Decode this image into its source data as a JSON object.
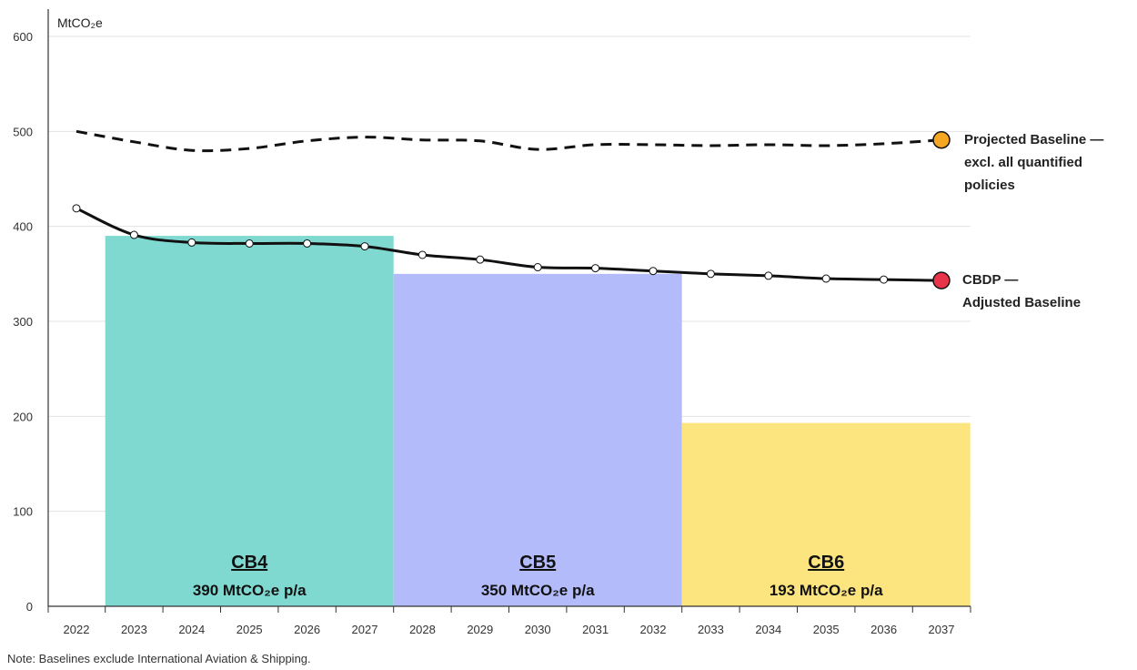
{
  "chart_data": {
    "type": "bar",
    "ylabel": "MtCO₂e",
    "ylim": [
      0,
      600
    ],
    "yticks": [
      0,
      100,
      200,
      300,
      400,
      500,
      600
    ],
    "x": [
      "2022",
      "2023",
      "2024",
      "2025",
      "2026",
      "2027",
      "2028",
      "2029",
      "2030",
      "2031",
      "2032",
      "2033",
      "2034",
      "2035",
      "2036",
      "2037"
    ],
    "grid": true,
    "budgets": [
      {
        "name": "CB4",
        "label": "390 MtCO₂e p/a",
        "value": 390,
        "start": "2023",
        "end": "2027",
        "color": "#80d9d1"
      },
      {
        "name": "CB5",
        "label": "350 MtCO₂e p/a",
        "value": 350,
        "start": "2028",
        "end": "2032",
        "color": "#b3bbfa"
      },
      {
        "name": "CB6",
        "label": "193 MtCO₂e p/a",
        "value": 193,
        "start": "2033",
        "end": "2037",
        "color": "#fce47e"
      }
    ],
    "series": [
      {
        "name": "Projected Baseline — excl. all quantified policies",
        "label_lines": [
          "Projected Baseline —",
          "excl. all quantified",
          "policies"
        ],
        "style": "dashed",
        "marker_color": "#f5a623",
        "values": [
          500,
          489,
          480,
          482,
          490,
          494,
          491,
          490,
          481,
          486,
          486,
          485,
          486,
          485,
          487,
          491
        ]
      },
      {
        "name": "CBDP — Adjusted Baseline",
        "label_lines": [
          "CBDP —",
          "Adjusted Baseline"
        ],
        "style": "solid",
        "marker_color": "#e8334a",
        "values": [
          419,
          391,
          383,
          382,
          382,
          379,
          370,
          365,
          357,
          356,
          353,
          350,
          348,
          345,
          344,
          343
        ]
      }
    ]
  },
  "note": "Note: Baselines exclude International Aviation & Shipping."
}
